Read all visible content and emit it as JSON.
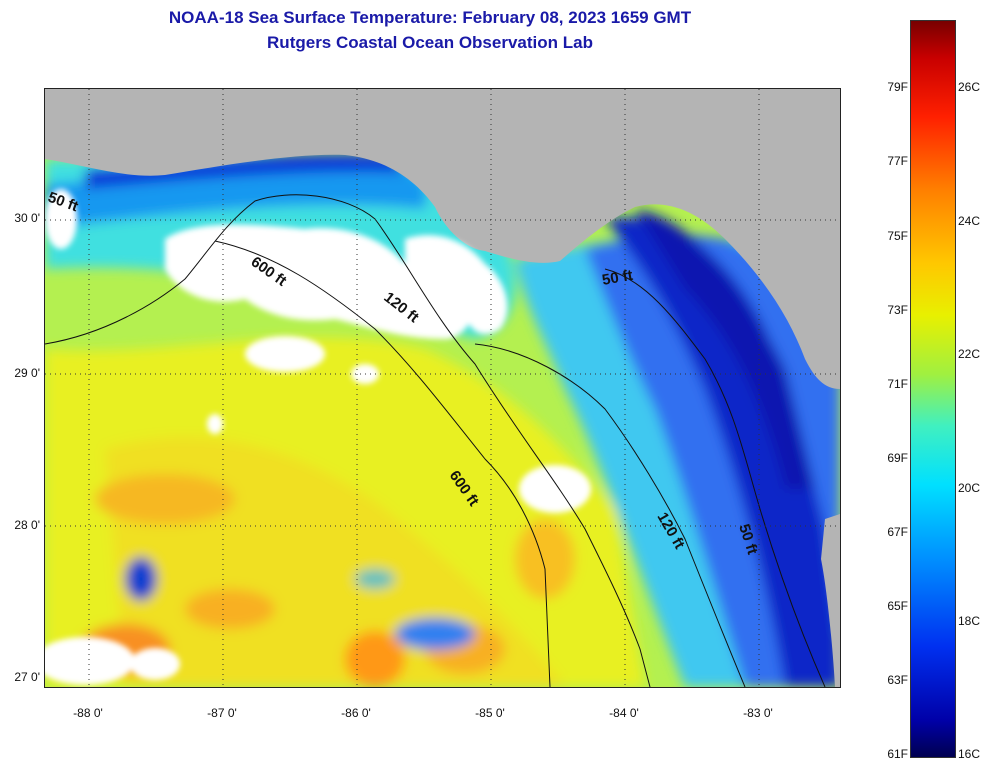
{
  "header": {
    "title": "NOAA-18 Sea Surface Temperature:  February 08, 2023 1659 GMT",
    "subtitle": "Rutgers Coastal Ocean Observation Lab"
  },
  "map": {
    "latitude_labels": [
      "30 0'",
      "29 0'",
      "28 0'",
      "27 0'"
    ],
    "longitude_labels": [
      "-88 0'",
      "-87 0'",
      "-86 0'",
      "-85 0'",
      "-84 0'",
      "-83 0'"
    ],
    "isobath_labels": [
      "50 ft",
      "600 ft",
      "120 ft",
      "50 ft",
      "600 ft",
      "120 ft",
      "50 ft"
    ],
    "colors": {
      "land": "#b4b4b4",
      "cloud": "#ffffff",
      "contour": "#111111"
    }
  },
  "colorbar": {
    "fahrenheit_labels": [
      "79F",
      "77F",
      "75F",
      "73F",
      "71F",
      "69F",
      "67F",
      "65F",
      "63F",
      "61F"
    ],
    "celsius_labels": [
      "26C",
      "24C",
      "22C",
      "20C",
      "18C",
      "16C"
    ]
  }
}
